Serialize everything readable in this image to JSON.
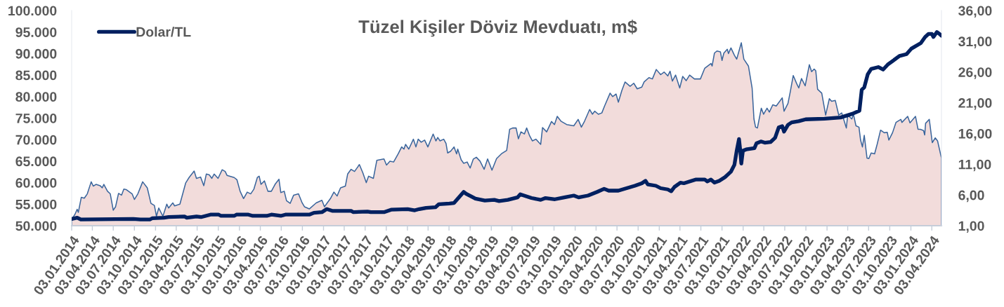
{
  "chart_data": {
    "type": "area",
    "title": "Tüzel Kişiler Döviz Mevduatı, m$",
    "legend": "top left",
    "xlim": [
      "2014-01-03",
      "2024-05-15"
    ],
    "xticks": [
      {
        "value": "2014-01-03",
        "label": "03.01.2014"
      },
      {
        "value": "2014-04-03",
        "label": "03.04.2014"
      },
      {
        "value": "2014-07-03",
        "label": "03.07.2014"
      },
      {
        "value": "2014-10-03",
        "label": "03.10.2014"
      },
      {
        "value": "2015-01-03",
        "label": "03.01.2015"
      },
      {
        "value": "2015-04-03",
        "label": "03.04.2015"
      },
      {
        "value": "2015-07-03",
        "label": "03.07.2015"
      },
      {
        "value": "2015-10-03",
        "label": "03.10.2015"
      },
      {
        "value": "2016-01-03",
        "label": "03.01.2016"
      },
      {
        "value": "2016-04-03",
        "label": "03.04.2016"
      },
      {
        "value": "2016-07-03",
        "label": "03.07.2016"
      },
      {
        "value": "2016-10-03",
        "label": "03.10.2016"
      },
      {
        "value": "2017-01-03",
        "label": "03.01.2017"
      },
      {
        "value": "2017-04-03",
        "label": "03.04.2017"
      },
      {
        "value": "2017-07-03",
        "label": "03.07.2017"
      },
      {
        "value": "2017-10-03",
        "label": "03.10.2017"
      },
      {
        "value": "2018-01-03",
        "label": "03.01.2018"
      },
      {
        "value": "2018-04-03",
        "label": "03.04.2018"
      },
      {
        "value": "2018-07-03",
        "label": "03.07.2018"
      },
      {
        "value": "2018-10-03",
        "label": "03.10.2018"
      },
      {
        "value": "2019-01-03",
        "label": "03.01.2019"
      },
      {
        "value": "2019-04-03",
        "label": "03.04.2019"
      },
      {
        "value": "2019-07-03",
        "label": "03.07.2019"
      },
      {
        "value": "2019-10-03",
        "label": "03.10.2019"
      },
      {
        "value": "2020-01-03",
        "label": "03.01.2020"
      },
      {
        "value": "2020-04-03",
        "label": "03.04.2020"
      },
      {
        "value": "2020-07-03",
        "label": "03.07.2020"
      },
      {
        "value": "2020-10-03",
        "label": "03.10.2020"
      },
      {
        "value": "2021-01-03",
        "label": "03.01.2021"
      },
      {
        "value": "2021-04-03",
        "label": "03.04.2021"
      },
      {
        "value": "2021-07-03",
        "label": "03.07.2021"
      },
      {
        "value": "2021-10-03",
        "label": "03.10.2021"
      },
      {
        "value": "2022-01-03",
        "label": "03.01.2022"
      },
      {
        "value": "2022-04-03",
        "label": "03.04.2022"
      },
      {
        "value": "2022-07-03",
        "label": "03.07.2022"
      },
      {
        "value": "2022-10-03",
        "label": "03.10.2022"
      },
      {
        "value": "2023-01-03",
        "label": "03.01.2023"
      },
      {
        "value": "2023-04-03",
        "label": "03.04.2023"
      },
      {
        "value": "2023-07-03",
        "label": "03.07.2023"
      },
      {
        "value": "2023-10-03",
        "label": "03.10.2023"
      },
      {
        "value": "2024-01-03",
        "label": "03.01.2024"
      },
      {
        "value": "2024-04-03",
        "label": "03.04.2024"
      }
    ],
    "ylim": [
      50000,
      100000
    ],
    "yticks": [
      {
        "value": 50000,
        "label": "50.000"
      },
      {
        "value": 55000,
        "label": "55.000"
      },
      {
        "value": 60000,
        "label": "60.000"
      },
      {
        "value": 65000,
        "label": "65.000"
      },
      {
        "value": 70000,
        "label": "70.000"
      },
      {
        "value": 75000,
        "label": "75.000"
      },
      {
        "value": 80000,
        "label": "80.000"
      },
      {
        "value": 85000,
        "label": "85.000"
      },
      {
        "value": 90000,
        "label": "90.000"
      },
      {
        "value": 95000,
        "label": "95.000"
      },
      {
        "value": 100000,
        "label": "100.000"
      }
    ],
    "y2lim": [
      1,
      36
    ],
    "y2ticks": [
      {
        "value": 1,
        "label": "1,00"
      },
      {
        "value": 6,
        "label": "6,00"
      },
      {
        "value": 11,
        "label": "11,00"
      },
      {
        "value": 16,
        "label": "16,00"
      },
      {
        "value": 21,
        "label": "21,00"
      },
      {
        "value": 26,
        "label": "26,00"
      },
      {
        "value": 31,
        "label": "31,00"
      },
      {
        "value": 36,
        "label": "36,00"
      }
    ],
    "series": [
      {
        "color": "#f2dcdb",
        "x": [
          "2014-01-03",
          "2014-01-17",
          "2014-01-27",
          "2014-02-01",
          "2014-02-14",
          "2014-02-27",
          "2014-03-12",
          "2014-03-29",
          "2014-04-07",
          "2014-04-19",
          "2014-05-07",
          "2014-05-16",
          "2014-05-23",
          "2014-06-08",
          "2014-06-20",
          "2014-07-03",
          "2014-07-13",
          "2014-07-26",
          "2014-08-08",
          "2014-08-18",
          "2014-08-28",
          "2014-09-23",
          "2014-10-03",
          "2014-10-18",
          "2014-11-08",
          "2014-11-28",
          "2014-12-14",
          "2014-12-29",
          "2015-01-07",
          "2015-01-17",
          "2015-02-04",
          "2015-02-21",
          "2015-03-01",
          "2015-03-19",
          "2015-03-27",
          "2015-04-19",
          "2015-05-14",
          "2015-05-29",
          "2015-06-20",
          "2015-06-30",
          "2015-07-18",
          "2015-08-01",
          "2015-08-12",
          "2015-08-25",
          "2015-09-05",
          "2015-09-15",
          "2015-10-02",
          "2015-10-20",
          "2015-11-02",
          "2015-11-10",
          "2015-12-11",
          "2015-12-23",
          "2016-01-06",
          "2016-01-21",
          "2016-02-06",
          "2016-02-21",
          "2016-03-06",
          "2016-03-21",
          "2016-03-29",
          "2016-04-06",
          "2016-04-21",
          "2016-05-06",
          "2016-05-21",
          "2016-06-06",
          "2016-06-23",
          "2016-07-01",
          "2016-07-16",
          "2016-07-26",
          "2016-08-11",
          "2016-08-26",
          "2016-09-16",
          "2016-10-02",
          "2016-10-12",
          "2016-11-02",
          "2016-12-02",
          "2016-12-27",
          "2017-01-07",
          "2017-02-02",
          "2017-02-17",
          "2017-03-03",
          "2017-03-18",
          "2017-04-08",
          "2017-04-18",
          "2017-05-03",
          "2017-05-18",
          "2017-06-08",
          "2017-06-23",
          "2017-07-08",
          "2017-07-18",
          "2017-08-08",
          "2017-08-23",
          "2017-09-23",
          "2017-10-04",
          "2017-10-19",
          "2017-11-04",
          "2017-11-24",
          "2017-12-09",
          "2017-12-19",
          "2017-12-26",
          "2018-01-09",
          "2018-01-29",
          "2018-02-09",
          "2018-02-19",
          "2018-03-04",
          "2018-03-19",
          "2018-04-02",
          "2018-04-25",
          "2018-05-07",
          "2018-05-15",
          "2018-05-25",
          "2018-06-10",
          "2018-06-20",
          "2018-06-27",
          "2018-07-10",
          "2018-07-25",
          "2018-08-05",
          "2018-08-10",
          "2018-08-25",
          "2018-09-05",
          "2018-09-20",
          "2018-10-03",
          "2018-10-17",
          "2018-10-30",
          "2018-11-15",
          "2018-12-03",
          "2018-12-18",
          "2019-01-06",
          "2019-01-26",
          "2019-02-16",
          "2019-03-11",
          "2019-03-24",
          "2019-04-06",
          "2019-04-21",
          "2019-05-01",
          "2019-05-12",
          "2019-05-27",
          "2019-06-06",
          "2019-06-18",
          "2019-07-01",
          "2019-07-16",
          "2019-08-06",
          "2019-08-14",
          "2019-09-01",
          "2019-09-22",
          "2019-10-05",
          "2019-10-17",
          "2019-11-02",
          "2019-11-27",
          "2019-12-28",
          "2020-01-16",
          "2020-01-30",
          "2020-02-13",
          "2020-03-06",
          "2020-03-18",
          "2020-03-28",
          "2020-04-13",
          "2020-04-28",
          "2020-05-10",
          "2020-06-03",
          "2020-06-14",
          "2020-06-29",
          "2020-07-09",
          "2020-07-24",
          "2020-08-07",
          "2020-08-29",
          "2020-09-14",
          "2020-09-29",
          "2020-10-19",
          "2020-10-29",
          "2020-11-19",
          "2020-12-04",
          "2020-12-21",
          "2021-01-09",
          "2021-01-24",
          "2021-02-09",
          "2021-02-19",
          "2021-03-01",
          "2021-03-15",
          "2021-04-02",
          "2021-04-15",
          "2021-04-30",
          "2021-05-15",
          "2021-06-05",
          "2021-07-01",
          "2021-07-20",
          "2021-08-16",
          "2021-08-21",
          "2021-08-31",
          "2021-09-11",
          "2021-09-26",
          "2021-10-03",
          "2021-10-11",
          "2021-10-26",
          "2021-10-31",
          "2021-11-11",
          "2021-11-26",
          "2021-12-06",
          "2021-12-26",
          "2022-01-06",
          "2022-01-26",
          "2022-02-11",
          "2022-02-19",
          "2022-02-26",
          "2022-03-06",
          "2022-03-23",
          "2022-04-02",
          "2022-04-17",
          "2022-04-27",
          "2022-05-12",
          "2022-05-27",
          "2022-06-22",
          "2022-06-30",
          "2022-07-17",
          "2022-07-27",
          "2022-08-09",
          "2022-08-24",
          "2022-09-02",
          "2022-09-14",
          "2022-09-30",
          "2022-10-18",
          "2022-10-28",
          "2022-11-08",
          "2022-11-15",
          "2022-11-23",
          "2022-12-11",
          "2022-12-28",
          "2023-01-13",
          "2023-01-23",
          "2023-02-08",
          "2023-02-23",
          "2023-03-08",
          "2023-03-28",
          "2023-04-03",
          "2023-04-21",
          "2023-04-28",
          "2023-05-09",
          "2023-05-22",
          "2023-05-29",
          "2023-06-06",
          "2023-06-14",
          "2023-06-26",
          "2023-07-04",
          "2023-07-14",
          "2023-07-29",
          "2023-08-09",
          "2023-08-24",
          "2023-09-09",
          "2023-09-22",
          "2023-09-29",
          "2023-10-15",
          "2023-10-30",
          "2023-11-20",
          "2023-11-25",
          "2023-12-20",
          "2023-12-30",
          "2024-01-23",
          "2024-02-03",
          "2024-02-13",
          "2024-02-27",
          "2024-03-03",
          "2024-03-07",
          "2024-03-23",
          "2024-04-05",
          "2024-04-18",
          "2024-04-28",
          "2024-05-15"
        ],
        "values": [
          51500,
          52600,
          53800,
          53100,
          56600,
          56400,
          57400,
          60200,
          59200,
          59600,
          59300,
          58800,
          59600,
          58000,
          57400,
          53600,
          54400,
          57500,
          57100,
          58500,
          58400,
          57400,
          56100,
          57400,
          60200,
          58800,
          55200,
          54700,
          52200,
          54100,
          52200,
          55000,
          54100,
          55300,
          54600,
          55000,
          59900,
          61200,
          62700,
          61000,
          61300,
          59300,
          62000,
          61800,
          61000,
          62000,
          61000,
          63000,
          62600,
          61700,
          61200,
          60700,
          58000,
          56300,
          57800,
          57400,
          58500,
          61200,
          61500,
          59600,
          60400,
          58000,
          58000,
          59600,
          60800,
          57700,
          58000,
          55800,
          55200,
          57100,
          57400,
          55300,
          54400,
          53900,
          55300,
          55900,
          54400,
          56300,
          57800,
          56900,
          58800,
          59200,
          62000,
          63100,
          62600,
          64200,
          62300,
          60000,
          61500,
          61000,
          65200,
          65500,
          64100,
          65000,
          64800,
          66700,
          68300,
          67800,
          68900,
          67800,
          70100,
          68300,
          70100,
          69400,
          69900,
          68300,
          71300,
          69700,
          70500,
          69700,
          70100,
          69100,
          66900,
          67300,
          68300,
          66700,
          67800,
          65300,
          64500,
          64800,
          63400,
          65500,
          65900,
          65000,
          63100,
          65500,
          62900,
          65600,
          66700,
          67500,
          72400,
          72700,
          72700,
          70200,
          71800,
          71300,
          72700,
          71000,
          69700,
          70100,
          68900,
          72800,
          71800,
          74200,
          73500,
          75400,
          74300,
          73500,
          73200,
          74700,
          72900,
          74300,
          77000,
          75900,
          76600,
          75900,
          76200,
          77800,
          80800,
          80000,
          80600,
          78700,
          81400,
          83400,
          82400,
          83100,
          81800,
          82200,
          83400,
          84400,
          84100,
          86300,
          85100,
          85700,
          84800,
          85900,
          83600,
          85000,
          82000,
          84700,
          83700,
          85000,
          84100,
          84100,
          86600,
          87700,
          87100,
          90100,
          90600,
          90400,
          88400,
          90100,
          91000,
          90000,
          91300,
          89600,
          88700,
          92500,
          88700,
          87100,
          82000,
          74800,
          72900,
          72700,
          77300,
          75900,
          77300,
          76400,
          78100,
          77800,
          79700,
          76600,
          78400,
          81100,
          84900,
          83000,
          82000,
          84200,
          82500,
          87400,
          85800,
          86400,
          86000,
          81700,
          80800,
          75700,
          79500,
          78900,
          79100,
          75700,
          76200,
          72700,
          75700,
          74800,
          75900,
          73200,
          72900,
          69900,
          68300,
          71000,
          65700,
          65600,
          66900,
          66700,
          68900,
          72200,
          71600,
          71700,
          69900,
          71600,
          74000,
          74700,
          74000,
          75400,
          73900,
          75400,
          72400,
          72400,
          72100,
          71100,
          73800,
          74700,
          69300,
          70400,
          69700,
          65700
        ]
      },
      {
        "type": "line",
        "name": "Dolar/TL",
        "color": "#002060",
        "axis": "y2",
        "x": [
          "2014-01-03",
          "2014-01-27",
          "2014-02-12",
          "2014-09-28",
          "2014-10-29",
          "2014-12-09",
          "2014-12-19",
          "2015-02-09",
          "2015-03-01",
          "2015-05-09",
          "2015-05-19",
          "2015-06-30",
          "2015-07-20",
          "2015-08-30",
          "2015-10-05",
          "2015-10-15",
          "2015-12-11",
          "2015-12-21",
          "2016-02-11",
          "2016-03-01",
          "2016-05-01",
          "2016-05-21",
          "2016-07-01",
          "2016-07-21",
          "2016-11-02",
          "2016-11-22",
          "2016-12-27",
          "2017-01-17",
          "2017-02-12",
          "2017-05-03",
          "2017-05-13",
          "2017-07-13",
          "2017-07-28",
          "2017-09-23",
          "2017-10-24",
          "2018-01-04",
          "2018-02-04",
          "2018-02-24",
          "2018-03-25",
          "2018-05-05",
          "2018-05-20",
          "2018-07-05",
          "2018-07-25",
          "2018-09-05",
          "2018-09-15",
          "2018-10-26",
          "2018-12-06",
          "2019-01-16",
          "2019-02-06",
          "2019-03-16",
          "2019-04-27",
          "2019-05-09",
          "2019-06-27",
          "2019-08-06",
          "2019-08-27",
          "2019-10-07",
          "2019-11-17",
          "2019-12-28",
          "2020-01-18",
          "2020-02-28",
          "2020-04-08",
          "2020-05-08",
          "2020-05-28",
          "2020-07-09",
          "2020-08-14",
          "2020-09-19",
          "2020-10-19",
          "2020-11-04",
          "2020-11-14",
          "2020-12-19",
          "2021-01-09",
          "2021-02-09",
          "2021-02-24",
          "2021-03-10",
          "2021-04-05",
          "2021-04-20",
          "2021-06-10",
          "2021-07-20",
          "2021-07-31",
          "2021-08-16",
          "2021-08-31",
          "2021-09-21",
          "2021-10-16",
          "2021-11-11",
          "2021-11-26",
          "2021-12-06",
          "2021-12-16",
          "2021-12-21",
          "2021-12-26",
          "2022-01-02",
          "2022-01-16",
          "2022-02-21",
          "2022-03-02",
          "2022-03-21",
          "2022-04-07",
          "2022-05-02",
          "2022-05-22",
          "2022-06-07",
          "2022-06-22",
          "2022-06-30",
          "2022-07-17",
          "2022-08-02",
          "2022-09-02",
          "2022-10-02",
          "2022-12-23",
          "2023-03-03",
          "2023-04-23",
          "2023-05-24",
          "2023-06-03",
          "2023-06-14",
          "2023-06-29",
          "2023-07-14",
          "2023-08-14",
          "2023-09-04",
          "2023-09-24",
          "2023-11-14",
          "2023-12-15",
          "2024-01-05",
          "2024-02-15",
          "2024-03-05",
          "2024-03-20",
          "2024-04-03",
          "2024-04-10",
          "2024-04-25",
          "2024-05-06",
          "2024-05-15"
        ],
        "values": [
          2.1,
          2.3,
          2.0,
          2.1,
          2.0,
          2.0,
          2.2,
          2.3,
          2.4,
          2.5,
          2.3,
          2.5,
          2.4,
          2.8,
          2.8,
          2.6,
          2.6,
          2.8,
          2.8,
          2.6,
          2.6,
          2.8,
          2.6,
          2.8,
          2.8,
          3.1,
          3.2,
          3.7,
          3.4,
          3.4,
          3.2,
          3.3,
          3.2,
          3.2,
          3.6,
          3.7,
          3.5,
          3.7,
          3.9,
          4.0,
          4.5,
          4.6,
          4.7,
          6.5,
          6.2,
          5.4,
          5.1,
          5.2,
          5.0,
          5.2,
          5.6,
          6.1,
          5.5,
          5.2,
          5.5,
          5.3,
          5.6,
          5.9,
          5.6,
          5.9,
          6.5,
          7.0,
          6.7,
          6.7,
          7.1,
          7.5,
          7.9,
          8.3,
          7.7,
          7.5,
          7.1,
          6.9,
          6.6,
          7.3,
          8.0,
          7.9,
          8.5,
          8.5,
          8.2,
          8.5,
          8.0,
          8.3,
          8.9,
          9.8,
          10.9,
          13.2,
          15.1,
          13.4,
          11.1,
          13.2,
          13.4,
          13.6,
          14.4,
          14.7,
          14.5,
          14.6,
          15.3,
          17.0,
          17.2,
          16.3,
          17.4,
          17.8,
          18.0,
          18.3,
          18.4,
          18.6,
          19.2,
          19.7,
          23.1,
          23.5,
          25.6,
          26.5,
          26.8,
          26.4,
          27.2,
          28.6,
          28.9,
          29.8,
          30.7,
          31.7,
          32.2,
          32.2,
          31.7,
          32.5,
          32.2,
          31.9
        ]
      }
    ]
  }
}
